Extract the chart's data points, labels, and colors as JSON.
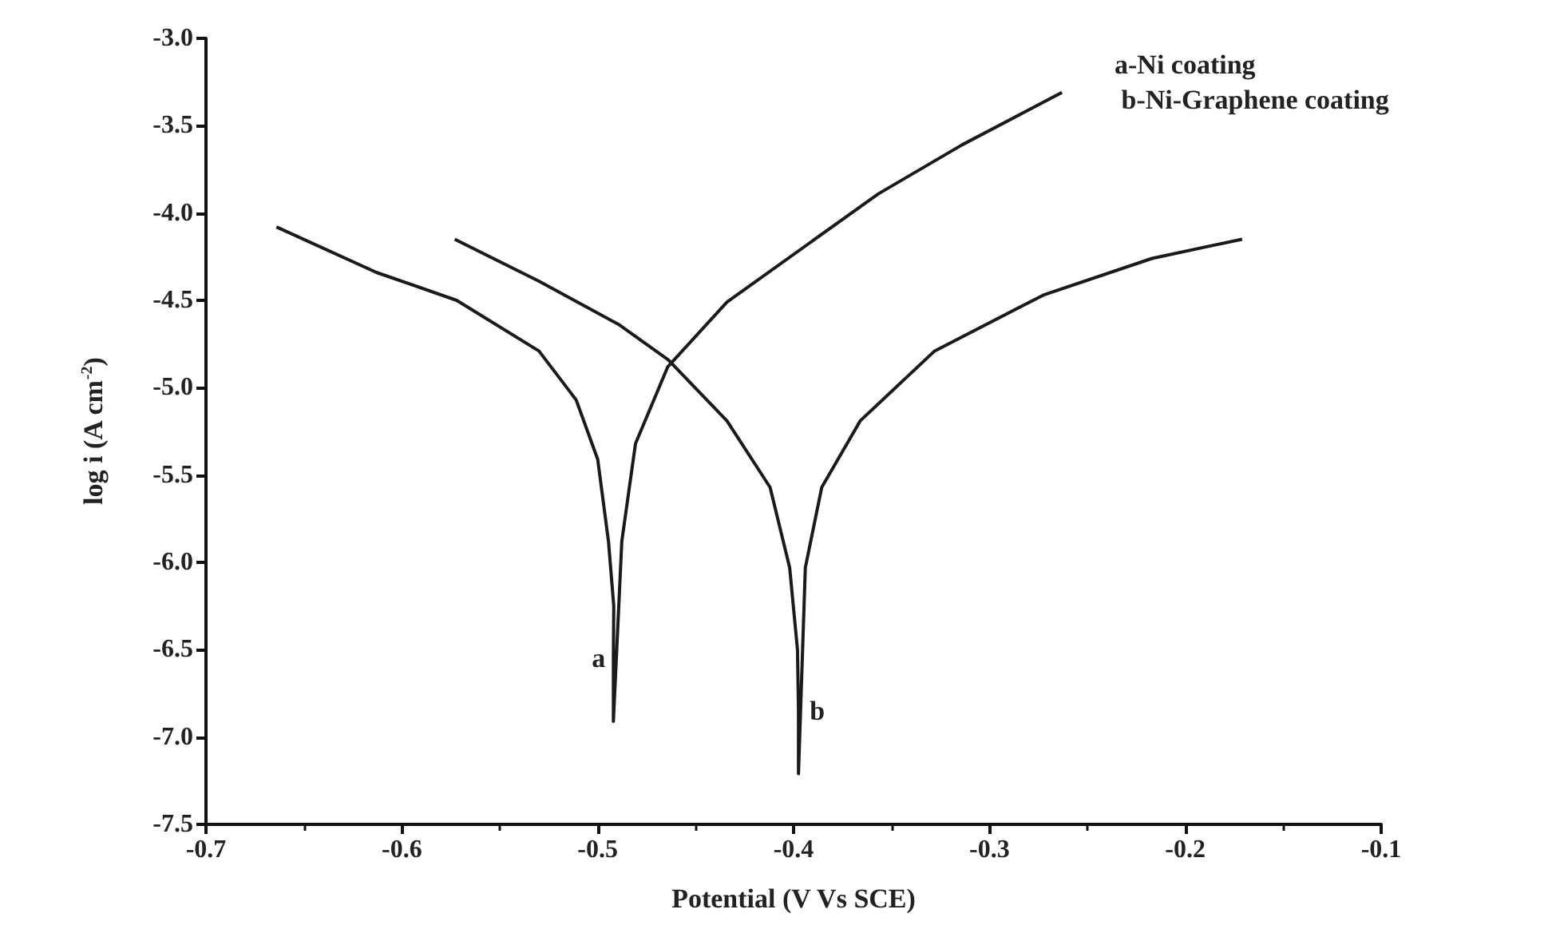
{
  "chart_data": {
    "type": "line",
    "xlabel": "Potential (V Vs SCE)",
    "ylabel": "log i (A cm$^{-2}$)",
    "xlim": [
      -0.7,
      -0.1
    ],
    "xticks": [
      {
        "value": -0.7,
        "label": "-0.7"
      },
      {
        "value": -0.6,
        "label": "-0.6"
      },
      {
        "value": -0.5,
        "label": "-0.5"
      },
      {
        "value": -0.4,
        "label": "-0.4"
      },
      {
        "value": -0.3,
        "label": "-0.3"
      },
      {
        "value": -0.2,
        "label": "-0.2"
      },
      {
        "value": -0.1,
        "label": "-0.1"
      }
    ],
    "ylim": [
      -7.5,
      -3.0
    ],
    "yticks": [
      {
        "value": -7.5,
        "label": "-7.5"
      },
      {
        "value": -7,
        "label": "-7.0"
      },
      {
        "value": -6.5,
        "label": "-6.5"
      },
      {
        "value": -6,
        "label": "-6.0"
      },
      {
        "value": -5.5,
        "label": "-5.5"
      },
      {
        "value": -5,
        "label": "-5.0"
      },
      {
        "value": -4.5,
        "label": "-4.5"
      },
      {
        "value": -4,
        "label": "-4.0"
      },
      {
        "value": -3.5,
        "label": "-3.5"
      },
      {
        "value": -3,
        "label": "-3.0"
      }
    ],
    "grid": false,
    "marker": "none",
    "line_style": "solid",
    "series": [
      {
        "color": "#1a1a1a",
        "x": [
          -0.664,
          -0.613,
          -0.572,
          -0.53,
          -0.511,
          -0.5,
          -0.4945,
          -0.4918,
          -0.492,
          -0.492,
          -0.4877,
          -0.4807,
          -0.4642,
          -0.434,
          -0.3567,
          -0.314,
          -0.263
        ],
        "values": [
          -4.08,
          -4.34,
          -4.5,
          -4.79,
          -5.07,
          -5.41,
          -5.88,
          -6.25,
          -6.55,
          -6.91,
          -5.88,
          -5.32,
          -4.88,
          -4.51,
          -3.89,
          -3.61,
          -3.31
        ]
      },
      {
        "color": "#1a1a1a",
        "x": [
          -0.573,
          -0.53,
          -0.489,
          -0.464,
          -0.434,
          -0.412,
          -0.402,
          -0.398,
          -0.3975,
          -0.3975,
          -0.394,
          -0.3856,
          -0.366,
          -0.328,
          -0.2725,
          -0.217,
          -0.171
        ],
        "values": [
          -4.15,
          -4.39,
          -4.64,
          -4.84,
          -5.19,
          -5.57,
          -6.03,
          -6.5,
          -6.85,
          -7.21,
          -6.03,
          -5.57,
          -5.19,
          -4.79,
          -4.47,
          -4.26,
          -4.15
        ]
      }
    ],
    "annotations": [
      "a-Ni coating",
      " b-Ni-Graphene coating",
      {
        "text": "a",
        "x": -0.492,
        "y": -6.55
      },
      {
        "text": "b",
        "x": -0.3975,
        "y": -6.85
      }
    ]
  }
}
